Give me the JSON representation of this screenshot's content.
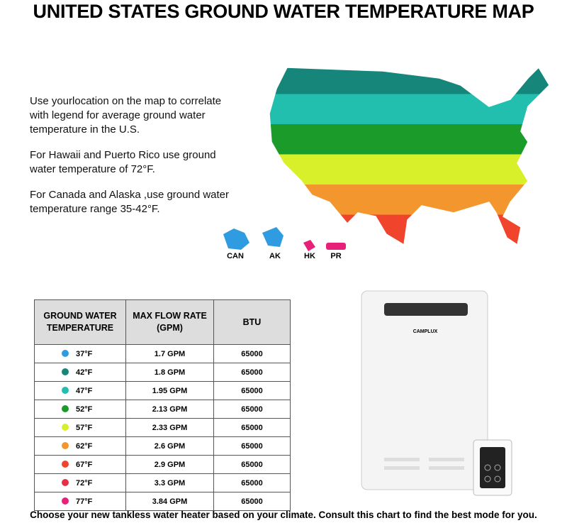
{
  "header": {
    "title": "UNITED STATES GROUND WATER TEMPERATURE MAP"
  },
  "intro": [
    "Use yourlocation on the map to correlate with legend for average ground water temperature in the U.S.",
    "For Hawaii and Puerto Rico use ground water temperature of 72°F.",
    "For Canada and Alaska ,use ground water temperature range 35-42°F."
  ],
  "map": {
    "labels": [
      "CAN",
      "AK",
      "HK",
      "PR"
    ]
  },
  "table": {
    "columns": [
      "GROUND WATER TEMPERATURE",
      "MAX FLOW RATE (GPM)",
      "BTU"
    ],
    "rows": [
      {
        "temperature": "37°F",
        "flow": "1.7 GPM",
        "btu": 65000,
        "color": "#2f9be0"
      },
      {
        "temperature": "42°F",
        "flow": "1.8 GPM",
        "btu": 65000,
        "color": "#16867a"
      },
      {
        "temperature": "47°F",
        "flow": "1.95 GPM",
        "btu": 65000,
        "color": "#22bfae"
      },
      {
        "temperature": "52°F",
        "flow": "2.13 GPM",
        "btu": 65000,
        "color": "#1a9b2a"
      },
      {
        "temperature": "57°F",
        "flow": "2.33 GPM",
        "btu": 65000,
        "color": "#d8f02a"
      },
      {
        "temperature": "62°F",
        "flow": "2.6 GPM",
        "btu": 65000,
        "color": "#f4962e"
      },
      {
        "temperature": "67°F",
        "flow": "2.9 GPM",
        "btu": 65000,
        "color": "#f0452c"
      },
      {
        "temperature": "72°F",
        "flow": "3.3 GPM",
        "btu": 65000,
        "color": "#e63048"
      },
      {
        "temperature": "77°F",
        "flow": "3.84 GPM",
        "btu": 65000,
        "color": "#e8207a"
      }
    ]
  },
  "product": {
    "brand": "CAMPLUX"
  },
  "footer": "Choose your new tankless water heater based on your climate. Consult this chart to find the best mode for you."
}
